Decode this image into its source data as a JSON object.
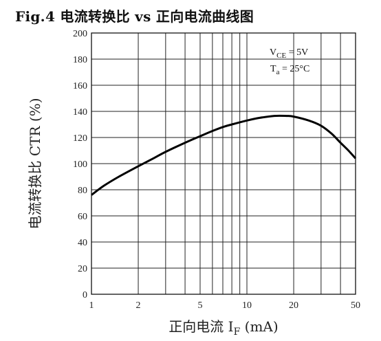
{
  "figure": {
    "title": "Fig.4 电流转换比 vs 正向电流曲线图"
  },
  "chart_data": {
    "type": "line",
    "x_scale": "log",
    "xlim": [
      1,
      50
    ],
    "ylim": [
      0,
      200
    ],
    "x_ticks": [
      1,
      2,
      5,
      10,
      20,
      50
    ],
    "x_tick_labels": [
      "1",
      "2",
      "5",
      "10",
      "20",
      "50"
    ],
    "x_minor_grid": [
      3,
      4,
      6,
      7,
      8,
      9,
      30,
      40
    ],
    "y_ticks": [
      0,
      20,
      40,
      60,
      80,
      100,
      120,
      140,
      160,
      180,
      200
    ],
    "y_tick_labels": [
      "0",
      "20",
      "40",
      "60",
      "80",
      "100",
      "120",
      "140",
      "160",
      "180",
      "200"
    ],
    "grid": true,
    "xlabel": {
      "prefix": "正向电流 I",
      "sub": "F",
      "suffix": " (mA)"
    },
    "ylabel": "电流转换比 CTR (%)",
    "conditions": [
      {
        "main": "V",
        "sub": "CE",
        "rest": " = 5V"
      },
      {
        "main": "T",
        "sub": "a",
        "rest": " = 25°C"
      }
    ],
    "series": [
      {
        "x": [
          1,
          1.2,
          1.5,
          2,
          2.5,
          3,
          4,
          5,
          6,
          7,
          8,
          10,
          12,
          15,
          18,
          20,
          25,
          30,
          35,
          40,
          45,
          50
        ],
        "y": [
          76,
          83,
          90,
          98,
          104,
          109,
          116,
          121,
          125,
          128,
          130,
          133,
          135,
          136.5,
          136.5,
          136,
          133,
          129,
          123,
          116,
          110,
          104
        ]
      }
    ]
  }
}
